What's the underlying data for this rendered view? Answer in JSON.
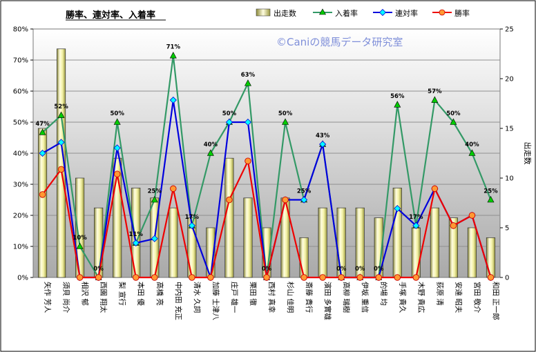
{
  "chart_data": {
    "type": "bar+line",
    "title": "勝率、連対率、入着率",
    "watermark": "©Caniの競馬データ研究室",
    "y_left": {
      "min": 0,
      "max": 80,
      "step": 10,
      "unit": "%"
    },
    "y_right": {
      "label": "出走数",
      "min": 0,
      "max": 25,
      "step": 5
    },
    "categories": [
      "矢作 芳人",
      "須貝 尚介",
      "相沢 郁",
      "西園 翔太",
      "梨 宣行",
      "本田 優",
      "高橋 亮",
      "中内田 充正",
      "清水 久詞",
      "加藤 士津八",
      "庄戸 雄一",
      "栗田 徹",
      "西村 真幸",
      "杉山 佳明",
      "斎藤 貴行",
      "濱田 多實雄",
      "高柳 瑞樹",
      "伊坂 重信",
      "的場 均",
      "手塚 貴久",
      "木野 貴広",
      "荻原 清",
      "安達 昭夫",
      "宮田 敬介",
      "和田 正一郎"
    ],
    "series": [
      {
        "name": "出走数",
        "kind": "bar",
        "axis": "right",
        "color": "#f0ee9a",
        "values": [
          15,
          23,
          10,
          7,
          12,
          9,
          8,
          7,
          6,
          5,
          12,
          8,
          5,
          8,
          4,
          7,
          7,
          7,
          6,
          9,
          5,
          7,
          6,
          5,
          4
        ]
      },
      {
        "name": "入着率",
        "kind": "line",
        "axis": "left",
        "color": "#339966",
        "marker": "triangle",
        "values": [
          46.7,
          52.2,
          10,
          0,
          50,
          11.1,
          25,
          71.4,
          16.7,
          40,
          50,
          62.5,
          0,
          50,
          25,
          42.9,
          0,
          0,
          0,
          55.6,
          16.7,
          57.1,
          50,
          40,
          25
        ]
      },
      {
        "name": "連対率",
        "kind": "line",
        "axis": "left",
        "color": "#0000dd",
        "marker": "diamond",
        "values": [
          40,
          43.5,
          0,
          0,
          41.7,
          11.1,
          12.5,
          57.1,
          16.7,
          0,
          50,
          50,
          0,
          25,
          25,
          42.9,
          0,
          0,
          0,
          22.2,
          16.7,
          28.6,
          16.7,
          20,
          0
        ]
      },
      {
        "name": "勝率",
        "kind": "line",
        "axis": "left",
        "color": "#ee0000",
        "marker": "circle",
        "values": [
          26.7,
          34.8,
          0,
          0,
          33.3,
          0,
          0,
          28.6,
          0,
          0,
          25,
          37.5,
          0,
          25,
          0,
          0,
          0,
          0,
          0,
          0,
          0,
          28.6,
          16.7,
          20,
          0
        ]
      }
    ],
    "data_labels": [
      "47%",
      "52%",
      "10%",
      "0%",
      "50%",
      "11%",
      "25%",
      "71%",
      "17%",
      "40%",
      "50%",
      "63%",
      "0%",
      "50%",
      "25%",
      "43%",
      "0%",
      "0%",
      "0%",
      "56%",
      "17%",
      "57%",
      "50%",
      "40%",
      "25%"
    ],
    "legend": {
      "position": "top-right",
      "order": [
        "出走数",
        "入着率",
        "連対率",
        "勝率"
      ]
    },
    "grid": true
  }
}
